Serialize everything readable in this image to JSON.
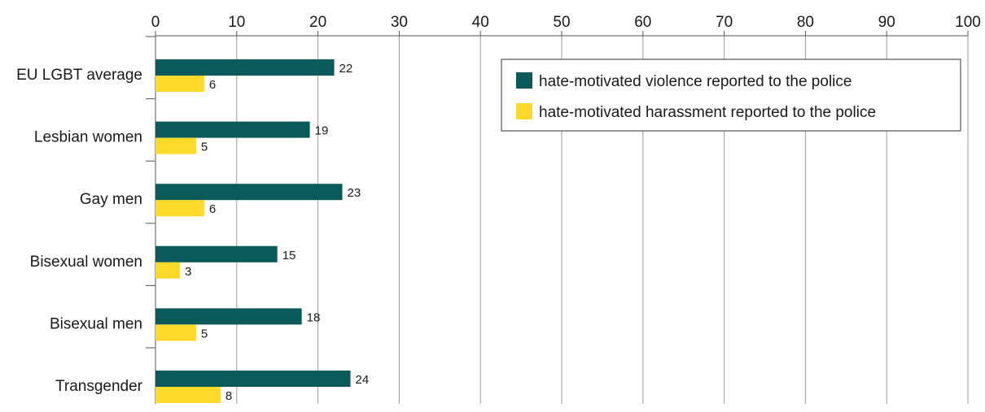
{
  "chart_data": {
    "type": "bar",
    "orientation": "horizontal",
    "categories": [
      "EU LGBT average",
      "Lesbian women",
      "Gay men",
      "Bisexual women",
      "Bisexual men",
      "Transgender"
    ],
    "series": [
      {
        "name": "hate-motivated violence reported to the police",
        "color": "#0a5a5a",
        "values": [
          22,
          19,
          23,
          15,
          18,
          24
        ]
      },
      {
        "name": "hate-motivated harassment reported to the police",
        "color": "#fcd92b",
        "values": [
          6,
          5,
          6,
          3,
          5,
          8
        ]
      }
    ],
    "xlim": [
      0,
      100
    ],
    "xticks": [
      0,
      10,
      20,
      30,
      40,
      50,
      60,
      70,
      80,
      90,
      100
    ],
    "x_axis_position": "top",
    "grid": true,
    "legend_position": "top-right",
    "data_labels": true
  }
}
